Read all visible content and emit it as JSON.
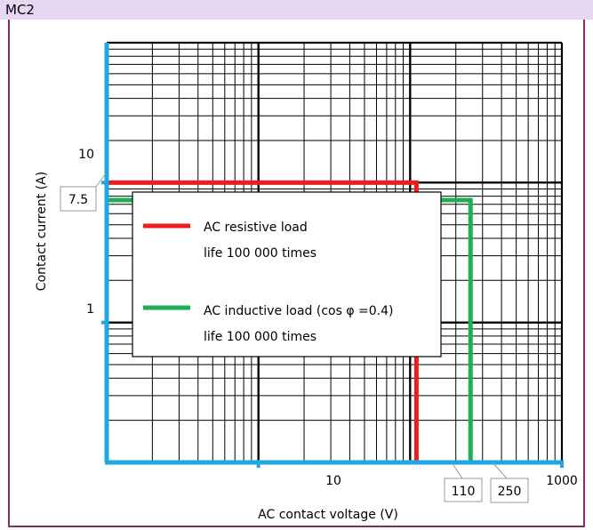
{
  "header": {
    "title": "MC2"
  },
  "chart_data": {
    "type": "line",
    "xlabel": "AC contact voltage (V)",
    "ylabel": "Contact current (A)",
    "x_scale": "log",
    "y_scale": "log",
    "xlim": [
      1,
      1000
    ],
    "ylim": [
      0.1,
      100
    ],
    "x_tick_labels": [
      {
        "value": 10,
        "label": "10"
      },
      {
        "value": 1000,
        "label": "1000"
      }
    ],
    "y_tick_labels": [
      {
        "value": 10,
        "label": "10"
      },
      {
        "value": 1,
        "label": "1"
      }
    ],
    "grid": true,
    "legend_position": "center-left",
    "series": [
      {
        "name": "AC resistive load",
        "name_line2": "life 100 000 times",
        "color": "#ee1c1c",
        "points": [
          {
            "x": 1,
            "y": 10
          },
          {
            "x": 110,
            "y": 10
          },
          {
            "x": 110,
            "y": 0.1
          }
        ]
      },
      {
        "name": "AC inductive load (cos φ =0.4)",
        "name_line2": "life 100 000 times",
        "color": "#1fae55",
        "points": [
          {
            "x": 1,
            "y": 7.5
          },
          {
            "x": 250,
            "y": 7.5
          },
          {
            "x": 250,
            "y": 0.1
          }
        ]
      }
    ],
    "annotations": [
      {
        "text": "7.5",
        "axis": "y",
        "value": 7.5
      },
      {
        "text": "110",
        "axis": "x",
        "value": 110
      },
      {
        "text": "250",
        "axis": "x",
        "value": 250
      }
    ],
    "axis_color": "#1ea7e1"
  }
}
